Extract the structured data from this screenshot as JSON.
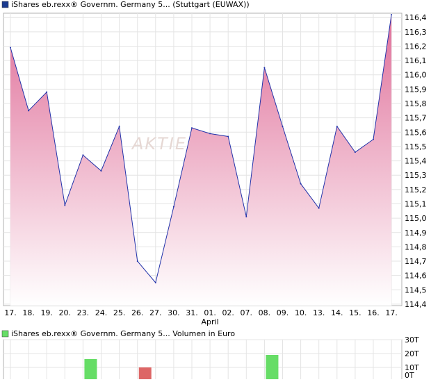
{
  "watermark": "AKTIEN",
  "chart_data": [
    {
      "type": "area",
      "legend_text": "iShares eb.rexx® Governm. Germany 5... (Stuttgart (EUWAX))",
      "legend_color": "#1a3a8f",
      "x_ticks": [
        "17.",
        "18.",
        "19.",
        "20.",
        "23.",
        "24.",
        "25.",
        "26.",
        "27.",
        "30.",
        "31.",
        "01.",
        "02.",
        "07.",
        "08.",
        "09.",
        "10.",
        "13.",
        "14.",
        "15.",
        "16.",
        "17."
      ],
      "month_label": "April",
      "month_label_index": 11,
      "y_ticks": [
        "116,4",
        "116,3",
        "116,2",
        "116,1",
        "116,0",
        "115,9",
        "115,8",
        "115,7",
        "115,6",
        "115,5",
        "115,4",
        "115,3",
        "115,2",
        "115,1",
        "115,0",
        "114,9",
        "114,8",
        "114,7",
        "114,6",
        "114,5",
        "114,4"
      ],
      "ylim": [
        114.39,
        116.43
      ],
      "values": [
        116.19,
        115.75,
        115.88,
        115.09,
        115.44,
        115.33,
        115.64,
        114.7,
        114.55,
        115.08,
        115.63,
        115.59,
        115.57,
        115.01,
        116.05,
        115.64,
        115.24,
        115.07,
        115.64,
        115.46,
        115.55,
        116.42
      ],
      "line_color": "#2233aa",
      "fill_top_color": "#e0709a",
      "fill_bottom_color": "#ffffff",
      "grid": true
    },
    {
      "type": "bar",
      "legend_text": "iShares eb.rexx® Governm. Germany 5... Volumen in Euro",
      "legend_color": "#66dd66",
      "y_ticks": [
        "30T",
        "20T",
        "10T",
        "0T"
      ],
      "ylim": [
        0,
        30
      ],
      "bars": [
        {
          "index": 4,
          "value": 16,
          "color": "#66dd66"
        },
        {
          "index": 5,
          "value": 0.6,
          "color": "#dd6666"
        },
        {
          "index": 7,
          "value": 10,
          "color": "#dd6666"
        },
        {
          "index": 14,
          "value": 19,
          "color": "#66dd66"
        }
      ],
      "grid": true
    }
  ]
}
